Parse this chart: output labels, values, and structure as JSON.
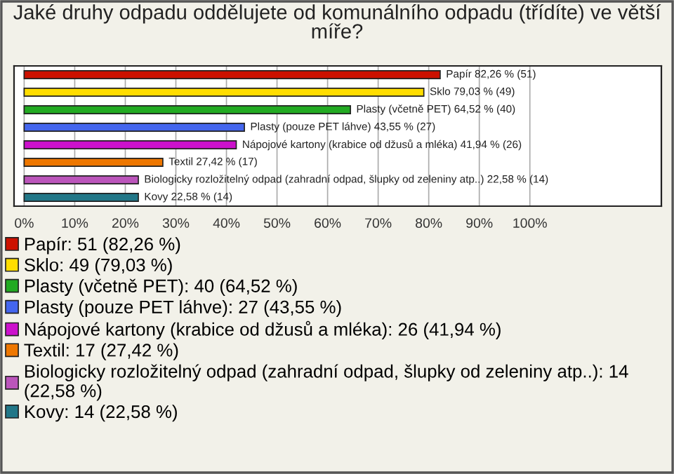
{
  "chart_data": {
    "type": "bar",
    "orientation": "horizontal",
    "title": "Jaké druhy odpadu oddělujete od komunálního odpadu (třídíte) ve větší míře?",
    "categories": [
      null,
      null,
      null,
      null,
      null,
      null,
      null,
      null
    ],
    "series": [
      {
        "name": "Papír: 51 (82,26 %)",
        "color": "#cc1100",
        "values": [
          82.26,
          null,
          null,
          null,
          null,
          null,
          null,
          null
        ],
        "value_labels": [
          "Papír 82,26 % (51)",
          null,
          null,
          null,
          null,
          null,
          null,
          null
        ]
      },
      {
        "name": "Sklo: 49 (79,03 %)",
        "color": "#ffdd00",
        "values": [
          null,
          79.03,
          null,
          null,
          null,
          null,
          null,
          null
        ],
        "value_labels": [
          null,
          "Sklo 79,03 % (49)",
          null,
          null,
          null,
          null,
          null,
          null
        ]
      },
      {
        "name": "Plasty (včetně PET): 40 (64,52 %)",
        "color": "#22aa22",
        "values": [
          null,
          null,
          64.52,
          null,
          null,
          null,
          null,
          null
        ],
        "value_labels": [
          null,
          null,
          "Plasty (včetně PET) 64,52 % (40)",
          null,
          null,
          null,
          null,
          null
        ]
      },
      {
        "name": "Plasty (pouze PET láhve): 27 (43,55 %)",
        "color": "#4466ee",
        "values": [
          null,
          null,
          null,
          43.55,
          null,
          null,
          null,
          null
        ],
        "value_labels": [
          null,
          null,
          null,
          "Plasty (pouze PET láhve) 43,55 % (27)",
          null,
          null,
          null,
          null
        ]
      },
      {
        "name": "Nápojové kartony (krabice od džusů a mléka): 26 (41,94 %)",
        "color": "#cc11cc",
        "values": [
          null,
          null,
          null,
          null,
          41.94,
          null,
          null,
          null
        ],
        "value_labels": [
          null,
          null,
          null,
          null,
          "Nápojové kartony (krabice od džusů a mléka) 41,94 % (26)",
          null,
          null,
          null
        ]
      },
      {
        "name": "Textil: 17 (27,42 %)",
        "color": "#ee7700",
        "values": [
          null,
          null,
          null,
          null,
          null,
          27.42,
          null,
          null
        ],
        "value_labels": [
          null,
          null,
          null,
          null,
          null,
          "Textil 27,42 % (17)",
          null,
          null
        ]
      },
      {
        "name": "Biologicky rozložitelný odpad (zahradní odpad, šlupky od zeleniny atp..): 14 (22,58 %)",
        "color": "#bb55bb",
        "values": [
          null,
          null,
          null,
          null,
          null,
          null,
          22.58,
          null
        ],
        "value_labels": [
          null,
          null,
          null,
          null,
          null,
          null,
          "Biologicky rozložitelný odpad (zahradní odpad, šlupky od zeleniny atp..) 22,58 % (14)",
          null
        ]
      },
      {
        "name": "Kovy: 14 (22,58 %)",
        "color": "#227788",
        "values": [
          null,
          null,
          null,
          null,
          null,
          null,
          null,
          22.58
        ],
        "value_labels": [
          null,
          null,
          null,
          null,
          null,
          null,
          null,
          "Kovy 22,58 % (14)"
        ]
      }
    ],
    "xlim": [
      -2,
      126
    ],
    "xticks": [
      {
        "value": 0,
        "label": "0%"
      },
      {
        "value": 10,
        "label": "10%"
      },
      {
        "value": 20,
        "label": "20%"
      },
      {
        "value": 30,
        "label": "30%"
      },
      {
        "value": 40,
        "label": "40%"
      },
      {
        "value": 50,
        "label": "50%"
      },
      {
        "value": 60,
        "label": "60%"
      },
      {
        "value": 70,
        "label": "70%"
      },
      {
        "value": 80,
        "label": "80%"
      },
      {
        "value": 90,
        "label": "90%"
      },
      {
        "value": 100,
        "label": "100%"
      }
    ],
    "grid": "x",
    "legend": "bottom",
    "tick_labels": "x"
  }
}
